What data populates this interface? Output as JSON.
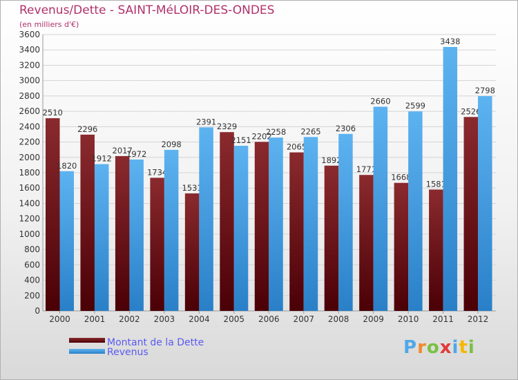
{
  "title": "Revenus/Dette - SAINT-MéLOIR-DES-ONDES",
  "subtitle": "(en milliers d'€)",
  "logo_text": "Proxiti",
  "colors": {
    "dette": "#6e1014",
    "revenus": "#3f9be0",
    "title": "#b0306a",
    "legend_text": "#5a5af0"
  },
  "chart_data": {
    "type": "bar",
    "title": "Revenus/Dette - SAINT-MéLOIR-DES-ONDES",
    "subtitle": "(en milliers d'€)",
    "xlabel": "",
    "ylabel": "",
    "ylim": [
      0,
      3600
    ],
    "ytick_step": 200,
    "grid": true,
    "legend_position": "bottom-left",
    "categories": [
      "2000",
      "2001",
      "2002",
      "2003",
      "2004",
      "2005",
      "2006",
      "2007",
      "2008",
      "2009",
      "2010",
      "2011",
      "2012"
    ],
    "series": [
      {
        "name": "Montant de la Dette",
        "values": [
          2510,
          2296,
          2017,
          1734,
          1531,
          2329,
          2202,
          2065,
          1892,
          1771,
          1668,
          1581,
          2526
        ]
      },
      {
        "name": "Revenus",
        "values": [
          1820,
          1912,
          1972,
          2098,
          2391,
          2151,
          2258,
          2265,
          2306,
          2660,
          2599,
          3438,
          2798
        ]
      }
    ]
  }
}
